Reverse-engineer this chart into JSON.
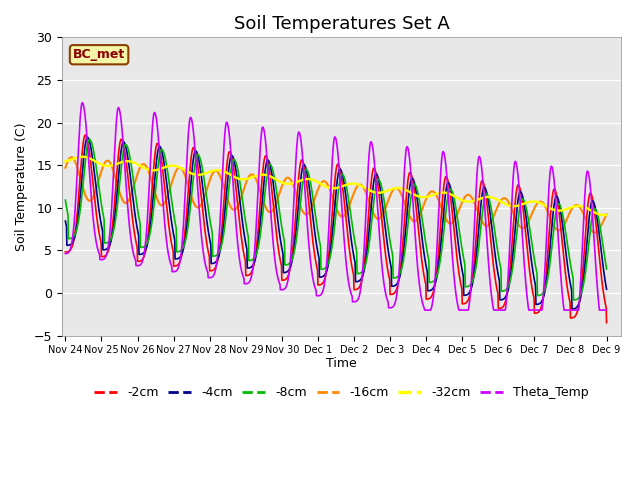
{
  "title": "Soil Temperatures Set A",
  "xlabel": "Time",
  "ylabel": "Soil Temperature (C)",
  "ylim": [
    -5,
    30
  ],
  "xtick_labels": [
    "Nov 24",
    "Nov 25",
    "Nov 26",
    "Nov 27",
    "Nov 28",
    "Nov 29",
    "Nov 30",
    "Dec 1",
    "Dec 2",
    "Dec 3",
    "Dec 4",
    "Dec 5",
    "Dec 6",
    "Dec 7",
    "Dec 8",
    "Dec 9"
  ],
  "series_colors": {
    "-2cm": "#ff0000",
    "-4cm": "#00008b",
    "-8cm": "#00bb00",
    "-16cm": "#ff8800",
    "-32cm": "#ffff00",
    "Theta_Temp": "#cc00ff"
  },
  "annotation_text": "BC_met",
  "bg_color": "#e8e8e8",
  "fig_bg_color": "#ffffff",
  "title_fontsize": 13,
  "axis_fontsize": 9,
  "legend_fontsize": 9,
  "grid_color": "#ffffff",
  "yticks": [
    -5,
    0,
    5,
    10,
    15,
    20,
    25,
    30
  ]
}
